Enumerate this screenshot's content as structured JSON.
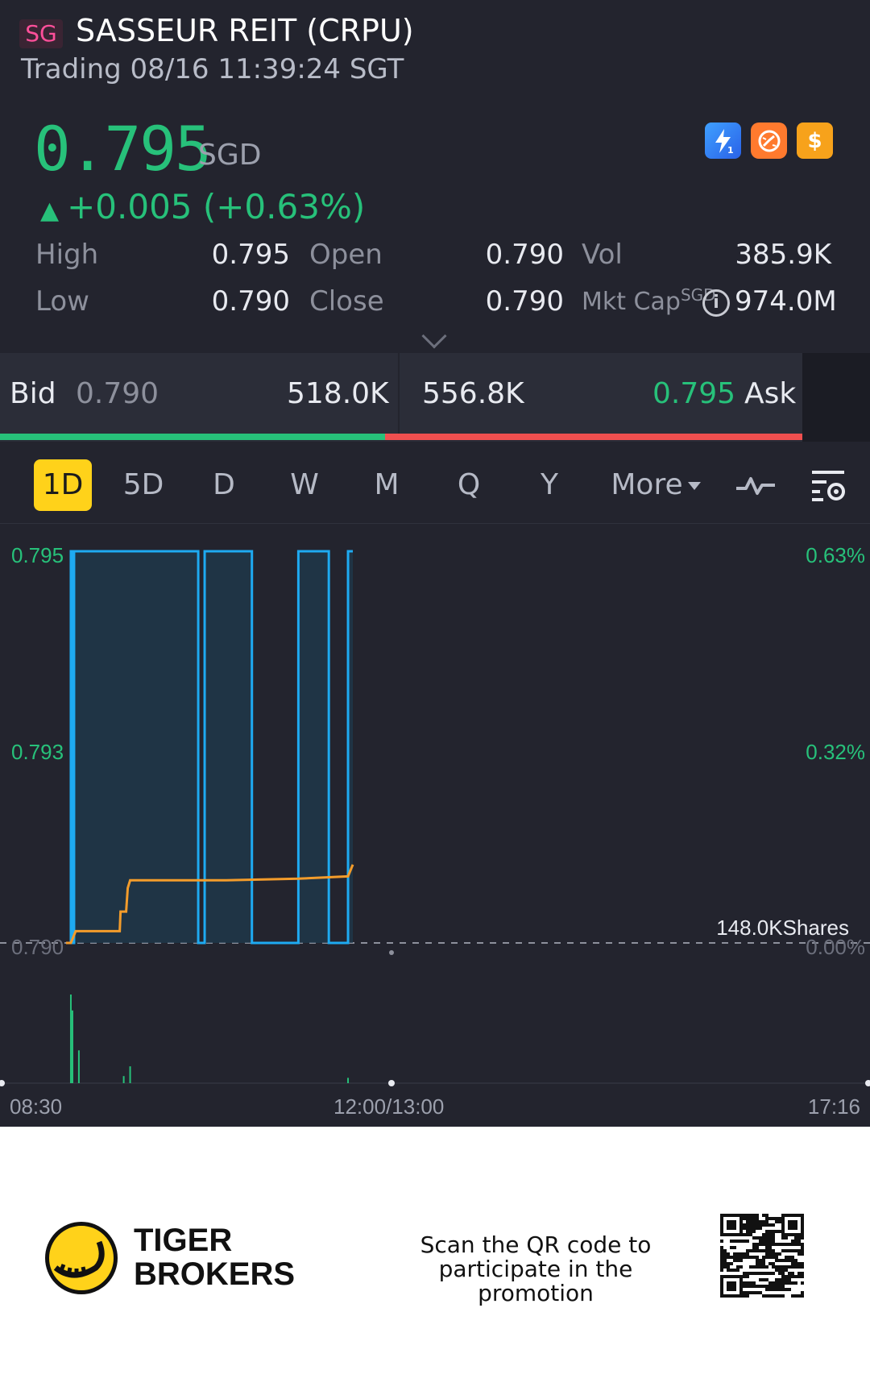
{
  "header": {
    "market_badge": "SG",
    "title": "SASSEUR REIT (CRPU)",
    "status": "Trading 08/16 11:39:24 SGT"
  },
  "quote": {
    "price": "0.795",
    "currency": "SGD",
    "change": "+0.005 (+0.63%)",
    "up_color": "#27c17a"
  },
  "badges": [
    "lightning-icon",
    "dial-icon",
    "dollar-icon"
  ],
  "stats": {
    "high_label": "High",
    "high": "0.795",
    "low_label": "Low",
    "low": "0.790",
    "open_label": "Open",
    "open": "0.790",
    "close_label": "Close",
    "close": "0.790",
    "vol_label": "Vol",
    "vol": "385.9K",
    "mktcap_label": "Mkt Cap",
    "mktcap_currency": "SGD",
    "mktcap": "974.0M"
  },
  "bidask": {
    "bid_label": "Bid",
    "bid_price": "0.790",
    "bid_size": "518.0K",
    "ask_size": "556.8K",
    "ask_price": "0.795",
    "ask_label": "Ask",
    "bid_share": 0.48
  },
  "tabs": [
    "1D",
    "5D",
    "D",
    "W",
    "M",
    "Q",
    "Y",
    "More"
  ],
  "active_tab": "1D",
  "chart_data": {
    "type": "line",
    "y_left_ticks": [
      "0.795",
      "0.793",
      "0.790"
    ],
    "y_right_ticks": [
      "0.63%",
      "0.32%",
      "0.00%"
    ],
    "x_ticks": [
      "08:30",
      "12:00/13:00",
      "17:16"
    ],
    "ylim": [
      0.79,
      0.795
    ],
    "volume_label": "148.0KShares",
    "series": [
      {
        "values": [
          [
            0,
            0.79
          ],
          [
            6,
            0.79
          ],
          [
            6,
            0.795
          ],
          [
            7,
            0.795
          ],
          [
            7,
            0.79
          ],
          [
            10,
            0.79
          ],
          [
            10,
            0.795
          ],
          [
            165,
            0.795
          ],
          [
            165,
            0.79
          ],
          [
            173,
            0.79
          ],
          [
            173,
            0.795
          ],
          [
            232,
            0.795
          ],
          [
            232,
            0.79
          ],
          [
            290,
            0.79
          ],
          [
            290,
            0.795
          ],
          [
            328,
            0.795
          ],
          [
            328,
            0.79
          ],
          [
            352,
            0.79
          ],
          [
            352,
            0.795
          ],
          [
            358,
            0.795
          ]
        ]
      },
      {
        "values": [
          [
            0,
            0.79
          ],
          [
            6,
            0.79
          ],
          [
            8,
            0.79005
          ],
          [
            12,
            0.79015
          ],
          [
            67,
            0.79015
          ],
          [
            68,
            0.7904
          ],
          [
            75,
            0.7904
          ],
          [
            77,
            0.7907
          ],
          [
            80,
            0.7908
          ],
          [
            200,
            0.7908
          ],
          [
            290,
            0.79082
          ],
          [
            352,
            0.79085
          ],
          [
            358,
            0.791
          ]
        ]
      }
    ],
    "volume_bars": [
      [
        6,
        100
      ],
      [
        8,
        82
      ],
      [
        16,
        37
      ],
      [
        72,
        8
      ],
      [
        80,
        19
      ],
      [
        352,
        6
      ]
    ]
  },
  "footer": {
    "brand_line1": "TIGER",
    "brand_line2": "BROKERS",
    "promo_text": "Scan the QR code to participate in the promotion"
  }
}
